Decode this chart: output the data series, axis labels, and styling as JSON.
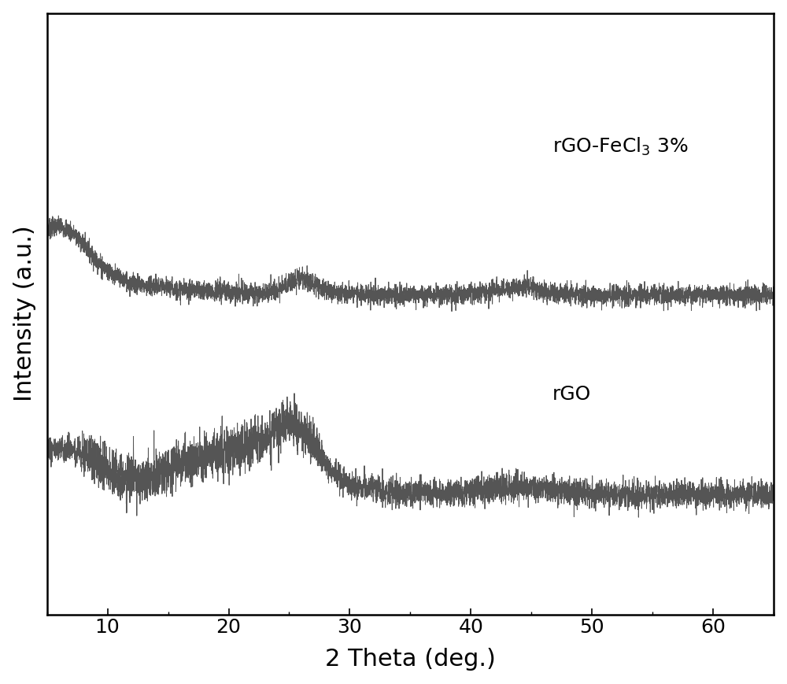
{
  "xlabel": "2 Theta (deg.)",
  "ylabel": "Intensity (a.u.)",
  "xlim": [
    5,
    65
  ],
  "ylim": [
    0.0,
    1.6
  ],
  "xticks": [
    10,
    20,
    30,
    40,
    50,
    60
  ],
  "line_color": "#555555",
  "background_color": "#ffffff",
  "label_fecl3": "rGO-FeCl$_3$ 3%",
  "label_rgo": "rGO",
  "xlabel_fontsize": 22,
  "ylabel_fontsize": 22,
  "tick_fontsize": 18,
  "annotation_fontsize": 18,
  "linewidth": 0.7,
  "seed": 7
}
